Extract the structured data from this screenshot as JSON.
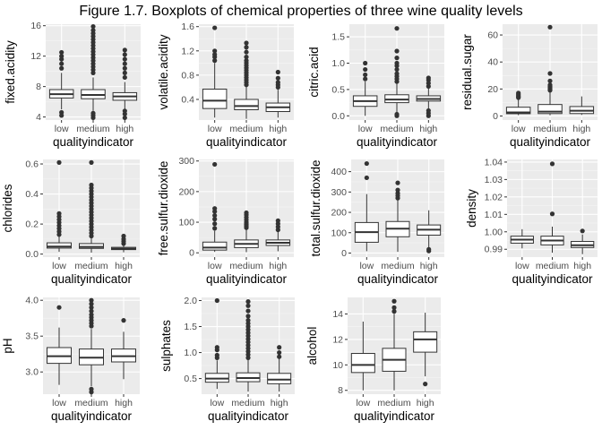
{
  "title": "Figure 1.7. Boxplots of chemical properties of three wine quality levels",
  "chart_data": [
    {
      "type": "boxplot",
      "ylabel": "fixed.acidity",
      "xlabel": "qualityindicator",
      "categories": [
        "low",
        "medium",
        "high"
      ],
      "yticks": [
        4,
        8,
        12,
        16
      ],
      "ylim": [
        3.6,
        16.2
      ],
      "grid": true,
      "boxes": [
        {
          "q1": 6.5,
          "median": 7.0,
          "q3": 7.6,
          "whisker_low": 5.0,
          "whisker_high": 9.8,
          "outliers": [
            4.2,
            4.6,
            10.4,
            11.0,
            11.6,
            12.0,
            12.5
          ]
        },
        {
          "q1": 6.4,
          "median": 6.9,
          "q3": 7.6,
          "whisker_low": 4.8,
          "whisker_high": 9.2,
          "outliers": [
            3.9,
            4.2,
            4.5,
            9.8,
            10.2,
            10.6,
            11.0,
            11.4,
            11.8,
            12.2,
            12.6,
            13.0,
            13.4,
            13.8,
            14.2,
            14.6,
            15.0,
            15.4,
            15.9
          ]
        },
        {
          "q1": 6.2,
          "median": 6.7,
          "q3": 7.2,
          "whisker_low": 5.0,
          "whisker_high": 8.6,
          "outliers": [
            3.9,
            4.4,
            4.8,
            9.2,
            9.8,
            10.4,
            11.0,
            11.6,
            12.2,
            12.8
          ]
        }
      ]
    },
    {
      "type": "boxplot",
      "ylabel": "volatile.acidity",
      "xlabel": "qualityindicator",
      "categories": [
        "low",
        "medium",
        "high"
      ],
      "yticks": [
        0.4,
        0.8,
        1.2,
        1.6
      ],
      "yticklabels": [
        "0.4",
        "0.8",
        "1.2",
        "1.6"
      ],
      "ylim": [
        0.06,
        1.64
      ],
      "grid": true,
      "boxes": [
        {
          "q1": 0.25,
          "median": 0.38,
          "q3": 0.57,
          "whisker_low": 0.1,
          "whisker_high": 1.0,
          "outliers": [
            1.04,
            1.1,
            1.14,
            1.2,
            1.58
          ]
        },
        {
          "q1": 0.23,
          "median": 0.29,
          "q3": 0.4,
          "whisker_low": 0.08,
          "whisker_high": 0.62,
          "outliers": [
            0.64,
            0.68,
            0.72,
            0.76,
            0.8,
            0.84,
            0.88,
            0.92,
            0.96,
            1.0,
            1.04,
            1.1,
            1.18,
            1.26,
            1.33
          ]
        },
        {
          "q1": 0.2,
          "median": 0.27,
          "q3": 0.34,
          "whisker_low": 0.1,
          "whisker_high": 0.56,
          "outliers": [
            0.6,
            0.64,
            0.68,
            0.75,
            0.85
          ]
        }
      ]
    },
    {
      "type": "boxplot",
      "ylabel": "citric.acid",
      "xlabel": "qualityindicator",
      "categories": [
        "low",
        "medium",
        "high"
      ],
      "yticks": [
        0.0,
        0.5,
        1.0,
        1.5
      ],
      "yticklabels": [
        "0.0",
        "0.5",
        "1.0",
        "1.5"
      ],
      "ylim": [
        -0.08,
        1.74
      ],
      "grid": true,
      "boxes": [
        {
          "q1": 0.18,
          "median": 0.28,
          "q3": 0.38,
          "whisker_low": 0.0,
          "whisker_high": 0.65,
          "outliers": [
            0.7,
            0.78,
            0.88,
            1.0
          ]
        },
        {
          "q1": 0.25,
          "median": 0.31,
          "q3": 0.4,
          "whisker_low": 0.0,
          "whisker_high": 0.62,
          "outliers": [
            0.0,
            0.03,
            0.65,
            0.7,
            0.75,
            0.8,
            0.88,
            0.95,
            1.0,
            1.1,
            1.23,
            1.66
          ]
        },
        {
          "q1": 0.28,
          "median": 0.32,
          "q3": 0.38,
          "whisker_low": 0.14,
          "whisker_high": 0.52,
          "outliers": [
            0.0,
            0.05,
            0.1,
            0.56,
            0.62,
            0.68,
            0.72
          ]
        }
      ]
    },
    {
      "type": "boxplot",
      "ylabel": "residual.sugar",
      "xlabel": "qualityindicator",
      "categories": [
        "low",
        "medium",
        "high"
      ],
      "yticks": [
        0,
        20,
        40,
        60
      ],
      "ylim": [
        -3,
        68
      ],
      "grid": true,
      "boxes": [
        {
          "q1": 1.7,
          "median": 2.6,
          "q3": 6.5,
          "whisker_low": 0.6,
          "whisker_high": 13.0,
          "outliers": [
            13.6,
            14.2,
            15.0,
            16.0,
            17.0
          ]
        },
        {
          "q1": 1.8,
          "median": 3.2,
          "q3": 8.5,
          "whisker_low": 0.6,
          "whisker_high": 18.5,
          "outliers": [
            19.0,
            19.6,
            20.2,
            21.0,
            22.0,
            23.0,
            26.0,
            31.5,
            65.8
          ]
        },
        {
          "q1": 1.8,
          "median": 3.9,
          "q3": 7.0,
          "whisker_low": 0.8,
          "whisker_high": 14.5,
          "outliers": []
        }
      ]
    },
    {
      "type": "boxplot",
      "ylabel": "chlorides",
      "xlabel": "qualityindicator",
      "categories": [
        "low",
        "medium",
        "high"
      ],
      "yticks": [
        0.0,
        0.2,
        0.4,
        0.6
      ],
      "yticklabels": [
        "0.0",
        "0.2",
        "0.4",
        "0.6"
      ],
      "ylim": [
        -0.02,
        0.63
      ],
      "grid": true,
      "boxes": [
        {
          "q1": 0.04,
          "median": 0.05,
          "q3": 0.075,
          "whisker_low": 0.015,
          "whisker_high": 0.12,
          "outliers": [
            0.13,
            0.15,
            0.17,
            0.19,
            0.21,
            0.23,
            0.25,
            0.27,
            0.61
          ]
        },
        {
          "q1": 0.038,
          "median": 0.048,
          "q3": 0.07,
          "whisker_low": 0.01,
          "whisker_high": 0.115,
          "outliers": [
            0.12,
            0.14,
            0.16,
            0.18,
            0.2,
            0.22,
            0.24,
            0.26,
            0.28,
            0.3,
            0.32,
            0.34,
            0.36,
            0.38,
            0.4,
            0.42,
            0.44,
            0.46,
            0.61
          ]
        },
        {
          "q1": 0.03,
          "median": 0.036,
          "q3": 0.045,
          "whisker_low": 0.012,
          "whisker_high": 0.065,
          "outliers": [
            0.07,
            0.085,
            0.1,
            0.12
          ]
        }
      ]
    },
    {
      "type": "boxplot",
      "ylabel": "free.sulfur.dioxide",
      "xlabel": "qualityindicator",
      "categories": [
        "low",
        "medium",
        "high"
      ],
      "yticks": [
        0,
        100,
        200,
        300
      ],
      "ylim": [
        -14,
        305
      ],
      "grid": true,
      "boxes": [
        {
          "q1": 9,
          "median": 17,
          "q3": 35,
          "whisker_low": 3,
          "whisker_high": 72,
          "outliers": [
            80,
            95,
            110,
            122,
            135,
            145,
            289
          ]
        },
        {
          "q1": 17,
          "median": 29,
          "q3": 42,
          "whisker_low": 2,
          "whisker_high": 78,
          "outliers": [
            82,
            88,
            94,
            100,
            108,
            116,
            124,
            131
          ]
        },
        {
          "q1": 24,
          "median": 33,
          "q3": 42,
          "whisker_low": 5,
          "whisker_high": 68,
          "outliers": [
            75,
            85,
            95,
            105
          ]
        }
      ]
    },
    {
      "type": "boxplot",
      "ylabel": "total.sulfur.dioxide",
      "xlabel": "qualityindicator",
      "categories": [
        "low",
        "medium",
        "high"
      ],
      "yticks": [
        0,
        100,
        200,
        300,
        400
      ],
      "ylim": [
        -20,
        460
      ],
      "grid": true,
      "boxes": [
        {
          "q1": 53,
          "median": 103,
          "q3": 150,
          "whisker_low": 9,
          "whisker_high": 290,
          "outliers": [
            370,
            440
          ]
        },
        {
          "q1": 80,
          "median": 120,
          "q3": 155,
          "whisker_low": 6,
          "whisker_high": 265,
          "outliers": [
            270,
            282,
            294,
            310,
            345
          ]
        },
        {
          "q1": 88,
          "median": 115,
          "q3": 138,
          "whisker_low": 20,
          "whisker_high": 210,
          "outliers": [
            10,
            18
          ]
        }
      ]
    },
    {
      "type": "boxplot",
      "ylabel": "density",
      "xlabel": "qualityindicator",
      "categories": [
        "low",
        "medium",
        "high"
      ],
      "yticks": [
        0.99,
        1.0,
        1.01,
        1.02,
        1.03,
        1.04
      ],
      "yticklabels": [
        "0.99",
        "1.00",
        "1.01",
        "1.02",
        "1.03",
        "1.04"
      ],
      "ylim": [
        0.9855,
        1.0415
      ],
      "grid": true,
      "boxes": [
        {
          "q1": 0.9935,
          "median": 0.9955,
          "q3": 0.9975,
          "whisker_low": 0.9905,
          "whisker_high": 1.0015,
          "outliers": []
        },
        {
          "q1": 0.9925,
          "median": 0.995,
          "q3": 0.9975,
          "whisker_low": 0.988,
          "whisker_high": 1.003,
          "outliers": [
            1.0103,
            1.039
          ]
        },
        {
          "q1": 0.991,
          "median": 0.9923,
          "q3": 0.9945,
          "whisker_low": 0.9872,
          "whisker_high": 0.9985,
          "outliers": [
            1.0005
          ]
        }
      ]
    },
    {
      "type": "boxplot",
      "ylabel": "pH",
      "xlabel": "qualityindicator",
      "categories": [
        "low",
        "medium",
        "high"
      ],
      "yticks": [
        3.0,
        3.5,
        4.0
      ],
      "yticklabels": [
        "3.0",
        "3.5",
        "4.0"
      ],
      "ylim": [
        2.69,
        4.04
      ],
      "grid": true,
      "boxes": [
        {
          "q1": 3.12,
          "median": 3.22,
          "q3": 3.34,
          "whisker_low": 2.82,
          "whisker_high": 3.62,
          "outliers": [
            3.9
          ]
        },
        {
          "q1": 3.1,
          "median": 3.2,
          "q3": 3.32,
          "whisker_low": 2.8,
          "whisker_high": 3.6,
          "outliers": [
            2.72,
            2.76,
            3.64,
            3.68,
            3.72,
            3.76,
            3.8,
            3.85,
            3.9,
            3.95,
            4.0
          ]
        },
        {
          "q1": 3.14,
          "median": 3.22,
          "q3": 3.32,
          "whisker_low": 2.9,
          "whisker_high": 3.56,
          "outliers": [
            3.72
          ]
        }
      ]
    },
    {
      "type": "boxplot",
      "ylabel": "sulphates",
      "xlabel": "qualityindicator",
      "categories": [
        "low",
        "medium",
        "high"
      ],
      "yticks": [
        0.5,
        1.0,
        1.5,
        2.0
      ],
      "yticklabels": [
        "0.5",
        "1.0",
        "1.5",
        "2.0"
      ],
      "ylim": [
        0.2,
        2.06
      ],
      "grid": true,
      "boxes": [
        {
          "q1": 0.43,
          "median": 0.5,
          "q3": 0.6,
          "whisker_low": 0.3,
          "whisker_high": 0.85,
          "outliers": [
            0.9,
            0.95,
            1.05,
            1.1,
            2.0
          ]
        },
        {
          "q1": 0.44,
          "median": 0.51,
          "q3": 0.61,
          "whisker_low": 0.25,
          "whisker_high": 0.86,
          "outliers": [
            0.9,
            0.96,
            1.02,
            1.08,
            1.14,
            1.2,
            1.26,
            1.32,
            1.38,
            1.44,
            1.5,
            1.56,
            1.62,
            1.7,
            1.8,
            1.9,
            1.98
          ]
        },
        {
          "q1": 0.4,
          "median": 0.48,
          "q3": 0.6,
          "whisker_low": 0.25,
          "whisker_high": 0.88,
          "outliers": [
            0.92,
            1.0,
            1.1
          ]
        }
      ]
    },
    {
      "type": "boxplot",
      "ylabel": "alcohol",
      "xlabel": "qualityindicator",
      "categories": [
        "low",
        "medium",
        "high"
      ],
      "yticks": [
        8,
        10,
        12,
        14
      ],
      "ylim": [
        7.7,
        15.3
      ],
      "grid": true,
      "boxes": [
        {
          "q1": 9.4,
          "median": 10.0,
          "q3": 10.9,
          "whisker_low": 8.0,
          "whisker_high": 13.4,
          "outliers": []
        },
        {
          "q1": 9.5,
          "median": 10.4,
          "q3": 11.3,
          "whisker_low": 8.0,
          "whisker_high": 14.0,
          "outliers": [
            14.2,
            14.5,
            15.0
          ]
        },
        {
          "q1": 11.0,
          "median": 12.0,
          "q3": 12.6,
          "whisker_low": 9.1,
          "whisker_high": 14.1,
          "outliers": [
            8.5
          ]
        }
      ]
    }
  ]
}
